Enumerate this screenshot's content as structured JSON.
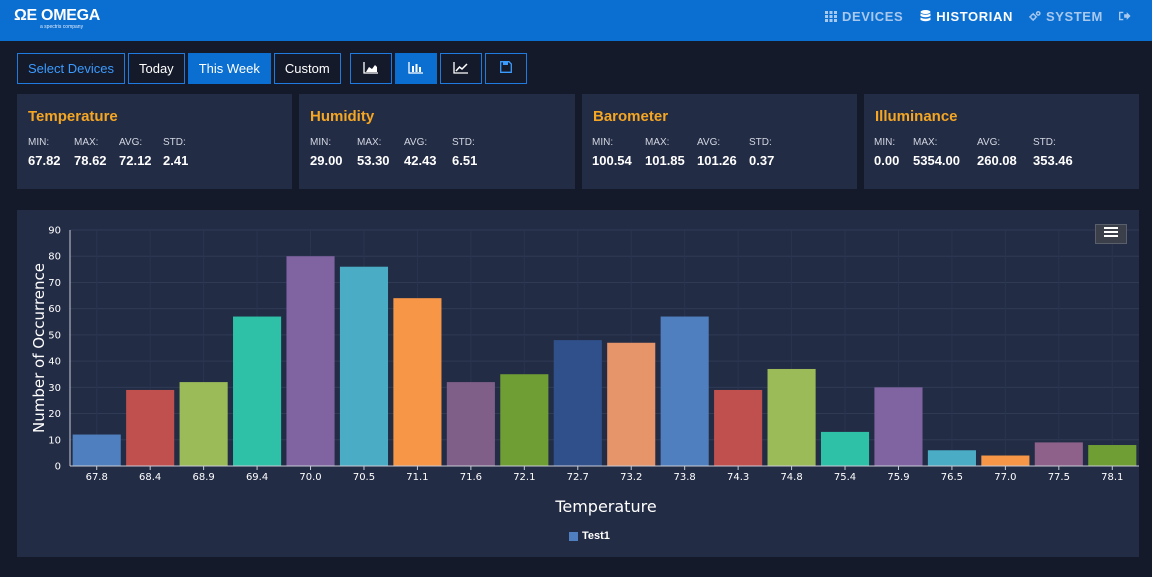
{
  "brand": {
    "logo_text": "ΩE OMEGA",
    "logo_sub": "a spectris company"
  },
  "nav": {
    "devices": "DEVICES",
    "historian": "HISTORIAN",
    "system": "SYSTEM"
  },
  "toolbar": {
    "select_devices": "Select Devices",
    "today": "Today",
    "this_week": "This Week",
    "custom": "Custom",
    "active": "This Week"
  },
  "cards": [
    {
      "title": "Temperature",
      "labels": [
        "MIN:",
        "MAX:",
        "AVG:",
        "STD:"
      ],
      "values": [
        "67.82",
        "78.62",
        "72.12",
        "2.41"
      ]
    },
    {
      "title": "Humidity",
      "labels": [
        "MIN:",
        "MAX:",
        "AVG:",
        "STD:"
      ],
      "values": [
        "29.00",
        "53.30",
        "42.43",
        "6.51"
      ]
    },
    {
      "title": "Barometer",
      "labels": [
        "MIN:",
        "MAX:",
        "AVG:",
        "STD:"
      ],
      "values": [
        "100.54",
        "101.85",
        "101.26",
        "0.37"
      ]
    },
    {
      "title": "Illuminance",
      "labels": [
        "MIN:",
        "MAX:",
        "AVG:",
        "STD:"
      ],
      "values": [
        "0.00",
        "5354.00",
        "260.08",
        "353.46"
      ]
    }
  ],
  "colors": {
    "accent": "#0a6fd1",
    "card_title": "#f5a623",
    "panel": "#232c45",
    "background": "#141a2a"
  },
  "chart_data": {
    "type": "bar",
    "xlabel": "Temperature",
    "ylabel": "Number of Occurrence",
    "ylim": [
      0,
      90
    ],
    "yticks": [
      0,
      10,
      20,
      30,
      40,
      50,
      60,
      70,
      80,
      90
    ],
    "grid": true,
    "legend_position": "bottom-center",
    "categories": [
      "67.8",
      "68.4",
      "68.9",
      "69.4",
      "70.0",
      "70.5",
      "71.1",
      "71.6",
      "72.1",
      "72.7",
      "73.2",
      "73.8",
      "74.3",
      "74.8",
      "75.4",
      "75.9",
      "76.5",
      "77.0",
      "77.5",
      "78.1"
    ],
    "series": [
      {
        "name": "Test1",
        "values": [
          12,
          29,
          32,
          57,
          80,
          76,
          64,
          32,
          35,
          48,
          47,
          57,
          29,
          37,
          13,
          30,
          6,
          4,
          9,
          8
        ]
      }
    ],
    "bar_colors": [
      "#4f7fbf",
      "#c0504d",
      "#9bbb59",
      "#2fc0a8",
      "#8064a2",
      "#4bacc6",
      "#f79646",
      "#7f5f87",
      "#6f9e34",
      "#30508c",
      "#e6946a",
      "#4f7fbf",
      "#c0504d",
      "#9bbb59",
      "#2fc0a8",
      "#8064a2",
      "#4bacc6",
      "#f79646",
      "#8e618a",
      "#6f9e34"
    ]
  }
}
